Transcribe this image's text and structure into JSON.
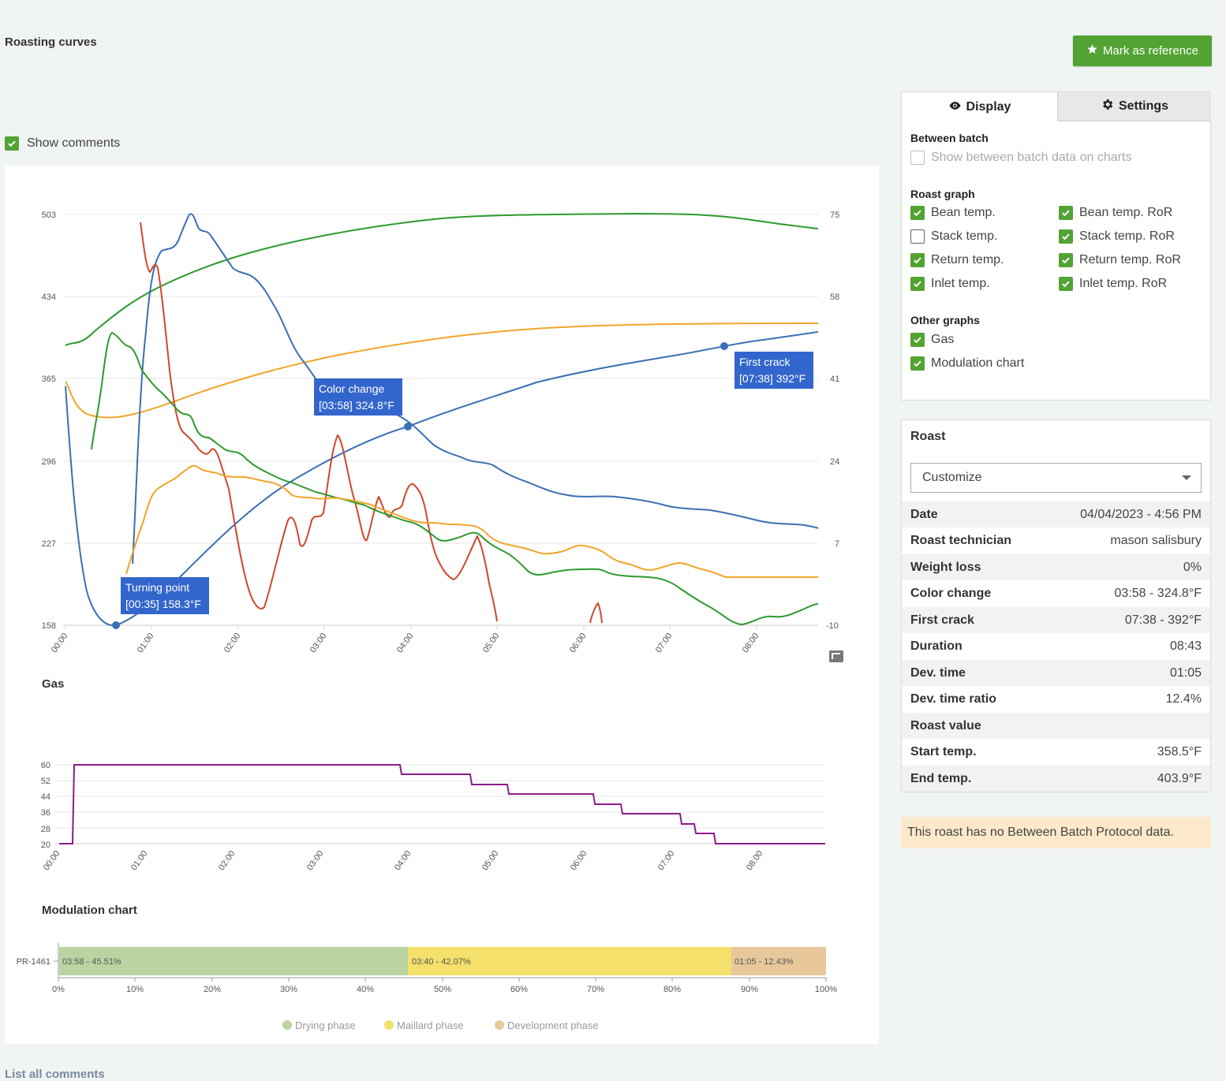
{
  "page": {
    "title": "Roasting curves",
    "reference_button": "Mark as reference",
    "show_comments_label": "Show comments",
    "list_link": "List all comments"
  },
  "roast_chart": {
    "left_axis": [
      "503",
      "434",
      "365",
      "296",
      "227",
      "158"
    ],
    "right_axis": [
      "75",
      "58",
      "41",
      "24",
      "7",
      "-10"
    ],
    "x_ticks": [
      "00:00",
      "01:00",
      "02:00",
      "03:00",
      "04:00",
      "05:00",
      "06:00",
      "07:00",
      "08:00"
    ],
    "annotations": {
      "turning_point": {
        "label": "Turning point",
        "value": "[00:35] 158.3°F"
      },
      "color_change": {
        "label": "Color change",
        "value": "[03:58] 324.8°F"
      },
      "first_crack": {
        "label": "First crack",
        "value": "[07:38] 392°F"
      }
    }
  },
  "gas_chart": {
    "title": "Gas",
    "y_ticks": [
      "60",
      "52",
      "44",
      "36",
      "28",
      "20"
    ],
    "x_ticks": [
      "00:00",
      "01:00",
      "02:00",
      "03:00",
      "04:00",
      "05:00",
      "06:00",
      "07:00",
      "08:00"
    ]
  },
  "modulation_chart": {
    "title": "Modulation chart",
    "row_label": "PR-1461",
    "segments": [
      {
        "label": "03:58 - 45.51%",
        "percent": 45.51
      },
      {
        "label": "03:40 - 42.07%",
        "percent": 42.07
      },
      {
        "label": "01:05 - 12.43%",
        "percent": 12.43
      }
    ],
    "x_ticks": [
      "0%",
      "10%",
      "20%",
      "30%",
      "40%",
      "50%",
      "60%",
      "70%",
      "80%",
      "90%",
      "100%"
    ],
    "legend": [
      "Drying phase",
      "Maillard phase",
      "Development phase"
    ],
    "colors": [
      "#b9d4a1",
      "#f4e06b",
      "#e8c89a"
    ]
  },
  "display_panel": {
    "tab_display": "Display",
    "tab_settings": "Settings",
    "between_batch_title": "Between batch",
    "between_batch_option": "Show between batch data on charts",
    "roast_graph_title": "Roast graph",
    "roast_graph_options": [
      {
        "label": "Bean temp.",
        "checked": true
      },
      {
        "label": "Bean temp. RoR",
        "checked": true
      },
      {
        "label": "Stack temp.",
        "checked": false
      },
      {
        "label": "Stack temp. RoR",
        "checked": true
      },
      {
        "label": "Return temp.",
        "checked": true
      },
      {
        "label": "Return temp. RoR",
        "checked": true
      },
      {
        "label": "Inlet temp.",
        "checked": true
      },
      {
        "label": "Inlet temp. RoR",
        "checked": true
      }
    ],
    "other_graphs_title": "Other graphs",
    "other_graphs_options": [
      {
        "label": "Gas",
        "checked": true
      },
      {
        "label": "Modulation chart",
        "checked": true
      }
    ]
  },
  "roast_panel": {
    "title": "Roast",
    "select_value": "Customize",
    "rows": [
      {
        "key": "Date",
        "value": "04/04/2023 - 4:56 PM"
      },
      {
        "key": "Roast technician",
        "value": "mason salisbury"
      },
      {
        "key": "Weight loss",
        "value": "0%"
      },
      {
        "key": "Color change",
        "value": "03:58 - 324.8°F"
      },
      {
        "key": "First crack",
        "value": "07:38 - 392°F"
      },
      {
        "key": "Duration",
        "value": "08:43"
      },
      {
        "key": "Dev. time",
        "value": "01:05"
      },
      {
        "key": "Dev. time ratio",
        "value": "12.4%"
      },
      {
        "key": "Roast value",
        "value": ""
      },
      {
        "key": "Start temp.",
        "value": "358.5°F"
      },
      {
        "key": "End temp.",
        "value": "403.9°F"
      }
    ]
  },
  "alert": "This roast has no Between Batch Protocol data.",
  "colors": {
    "accent": "#52a334",
    "blue": "#3b6fb6",
    "green": "#2e9a2e",
    "orange": "#f2a42a",
    "red": "#d0472a",
    "purple": "#8b1c8c"
  }
}
